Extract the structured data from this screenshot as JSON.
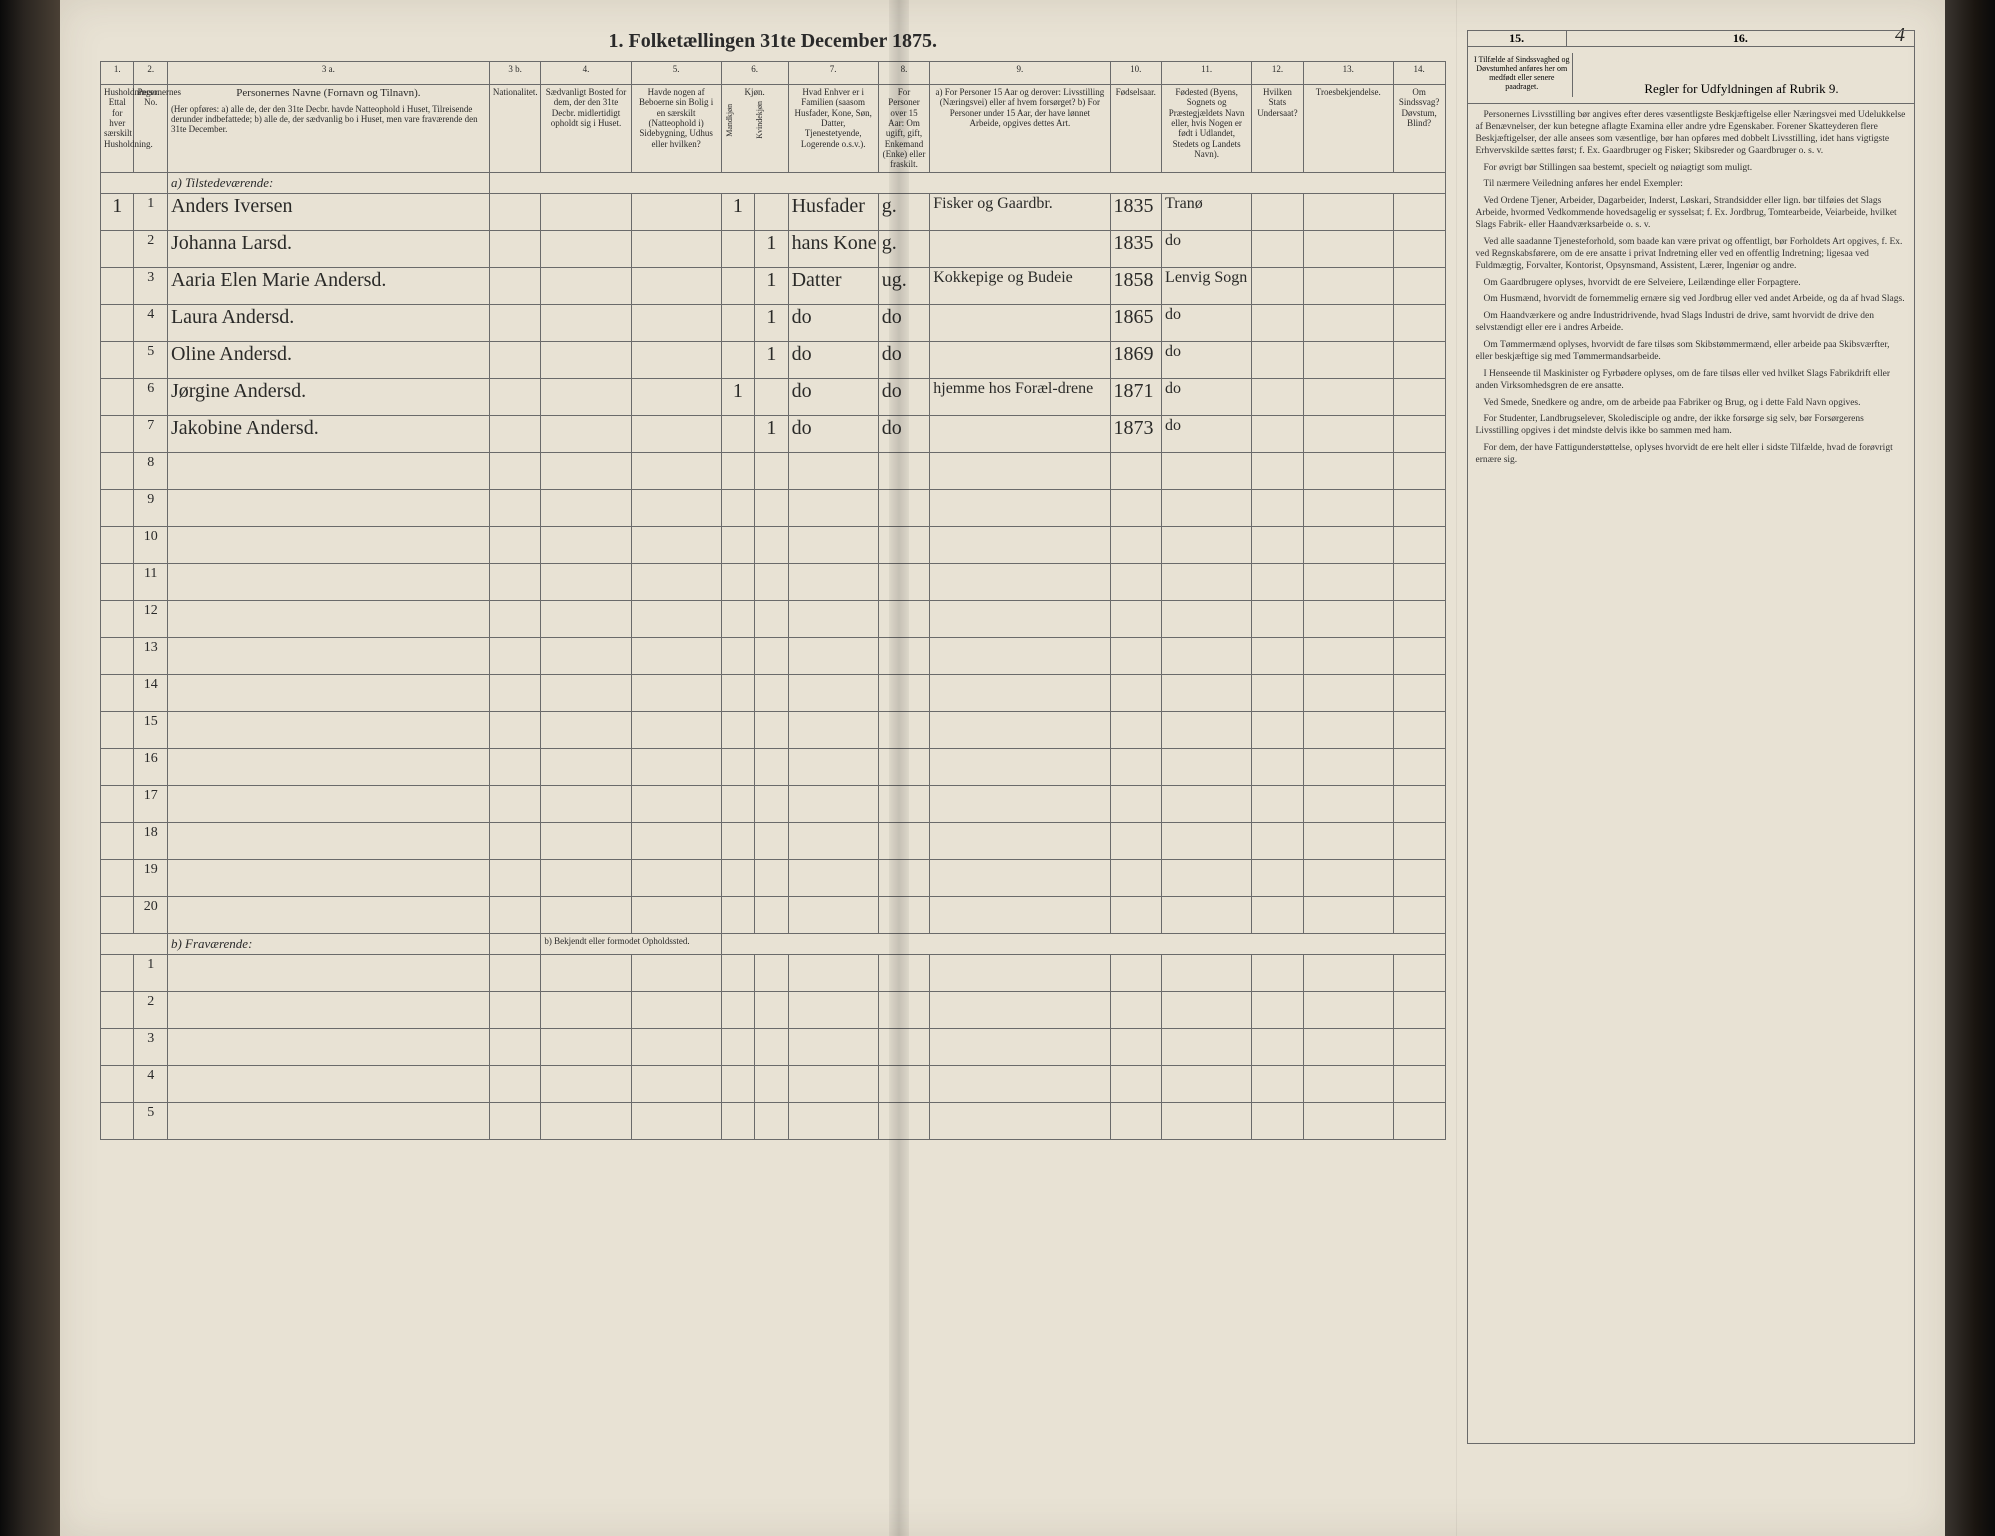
{
  "pageNumber": "4",
  "title": "1. Folketællingen 31te December 1875.",
  "columns": {
    "nums": [
      "1.",
      "2.",
      "3 a.",
      "3 b.",
      "4.",
      "5.",
      "6.",
      "7.",
      "8.",
      "9.",
      "10.",
      "11.",
      "12.",
      "13.",
      "14."
    ],
    "h1": "Husholdninger. Ettal for hver særskilt Husholdning.",
    "h2": "Personernes No.",
    "h3a_title": "Personernes Navne (Fornavn og Tilnavn).",
    "h3a_sub": "(Her opføres: a) alle de, der den 31te Decbr. havde Natteophold i Huset, Tilreisende derunder indbefattede; b) alle de, der sædvanlig bo i Huset, men vare fraværende den 31te December.",
    "h3b": "Nationalitet.",
    "h4": "Sædvanligt Bosted for dem, der den 31te Decbr. midlertidigt opholdt sig i Huset.",
    "h5": "Havde nogen af Beboerne sin Bolig i en særskilt (Natteophold i) Sidebygning, Udhus eller hvilken?",
    "h6": "Kjøn.",
    "h6a": "Mandkjøn",
    "h6b": "Kvindekjøn",
    "h7": "Hvad Enhver er i Familien (saasom Husfader, Kone, Søn, Datter, Tjenestetyende, Logerende o.s.v.).",
    "h8": "For Personer over 15 Aar: Om ugift, gift, Enkemand (Enke) eller fraskilt.",
    "h9": "a) For Personer 15 Aar og derover: Livsstilling (Næringsvei) eller af hvem forsørget? b) For Personer under 15 Aar, der have lønnet Arbeide, opgives dettes Art.",
    "h10": "Fødselsaar.",
    "h11": "Fødested (Byens, Sognets og Præstegjældets Navn eller, hvis Nogen er født i Udlandet, Stedets og Landets Navn).",
    "h12": "Hvilken Stats Undersaat?",
    "h13": "Troesbekjendelse.",
    "h14": "Om Sindssvag? Døvstum, Blind?"
  },
  "sectionA": "a) Tilstedeværende:",
  "sectionB": "b) Fraværende:",
  "sectionB_note": "b) Bekjendt eller formodet Opholdssted.",
  "rows": [
    {
      "hh": "1",
      "no": "1",
      "name": "Anders Iversen",
      "nat": "",
      "m": "1",
      "f": "",
      "rel": "Husfader",
      "civ": "g.",
      "occ": "Fisker og Gaardbr.",
      "year": "1835",
      "place": "Tranø"
    },
    {
      "hh": "",
      "no": "2",
      "name": "Johanna Larsd.",
      "nat": "",
      "m": "",
      "f": "1",
      "rel": "hans Kone",
      "civ": "g.",
      "occ": "",
      "year": "1835",
      "place": "do"
    },
    {
      "hh": "",
      "no": "3",
      "name": "Aaria Elen Marie Andersd.",
      "nat": "",
      "m": "",
      "f": "1",
      "rel": "Datter",
      "civ": "ug.",
      "occ": "Kokkepige og Budeie",
      "year": "1858",
      "place": "Lenvig Sogn"
    },
    {
      "hh": "",
      "no": "4",
      "name": "Laura Andersd.",
      "nat": "",
      "m": "",
      "f": "1",
      "rel": "do",
      "civ": "do",
      "occ": "",
      "year": "1865",
      "place": "do"
    },
    {
      "hh": "",
      "no": "5",
      "name": "Oline Andersd.",
      "nat": "",
      "m": "",
      "f": "1",
      "rel": "do",
      "civ": "do",
      "occ": "",
      "year": "1869",
      "place": "do"
    },
    {
      "hh": "",
      "no": "6",
      "name": "Jørgine Andersd.",
      "nat": "",
      "m": "1",
      "f": "",
      "rel": "do",
      "civ": "do",
      "occ": "hjemme hos Foræl-drene",
      "year": "1871",
      "place": "do"
    },
    {
      "hh": "",
      "no": "7",
      "name": "Jakobine Andersd.",
      "nat": "",
      "m": "",
      "f": "1",
      "rel": "do",
      "civ": "do",
      "occ": "",
      "year": "1873",
      "place": "do"
    }
  ],
  "emptyRowsA": [
    "8",
    "9",
    "10",
    "11",
    "12",
    "13",
    "14",
    "15",
    "16",
    "17",
    "18",
    "19",
    "20"
  ],
  "emptyRowsB": [
    "1",
    "2",
    "3",
    "4",
    "5"
  ],
  "rulesColNums": {
    "c15": "15.",
    "c16": "16."
  },
  "rulesHead15": "I Tilfælde af Sindssvaghed og Døvstumhed anføres her om medfødt eller senere paadraget.",
  "rulesHead16": "Regler for Udfyldningen af Rubrik 9.",
  "rules": [
    "Personernes Livsstilling bør angives efter deres væsentligste Beskjæftigelse eller Næringsvei med Udelukkelse af Benævnelser, der kun betegne aflagte Examina eller andre ydre Egenskaber. Forener Skatteyderen flere Beskjæftigelser, der alle ansees som væsentlige, bør han opføres med dobbelt Livsstilling, idet hans vigtigste Erhvervskilde sættes først; f. Ex. Gaardbruger og Fisker; Skibsreder og Gaardbruger o. s. v.",
    "For øvrigt bør Stillingen saa bestemt, specielt og nøiagtigt som muligt.",
    "Til nærmere Veiledning anføres her endel Exempler:",
    "Ved Ordene Tjener, Arbeider, Dagarbeider, Inderst, Løskari, Strandsidder eller lign. bør tilføies det Slags Arbeide, hvormed Vedkommende hovedsagelig er sysselsat; f. Ex. Jordbrug, Tomtearbeide, Veiarbeide, hvilket Slags Fabrik- eller Haandværksarbeide o. s. v.",
    "Ved alle saadanne Tjenesteforhold, som baade kan være privat og offentligt, bør Forholdets Art opgives, f. Ex. ved Regnskabsførere, om de ere ansatte i privat Indretning eller ved en offentlig Indretning; ligesaa ved Fuldmægtig, Forvalter, Kontorist, Opsynsmand, Assistent, Lærer, Ingeniør og andre.",
    "Om Gaardbrugere oplyses, hvorvidt de ere Selveiere, Leilændinge eller Forpagtere.",
    "Om Husmænd, hvorvidt de fornemmelig ernære sig ved Jordbrug eller ved andet Arbeide, og da af hvad Slags.",
    "Om Haandværkere og andre Industridrivende, hvad Slags Industri de drive, samt hvorvidt de drive den selvstændigt eller ere i andres Arbeide.",
    "Om Tømmermænd oplyses, hvorvidt de fare tilsøs som Skibstømmermænd, eller arbeide paa Skibsværfter, eller beskjæftige sig med Tømmermandsarbeide.",
    "I Henseende til Maskinister og Fyrbødere oplyses, om de fare tilsøs eller ved hvilket Slags Fabrikdrift eller anden Virksomhedsgren de ere ansatte.",
    "Ved Smede, Snedkere og andre, om de arbeide paa Fabriker og Brug, og i dette Fald Navn opgives.",
    "For Studenter, Landbrugselever, Skoledisciple og andre, der ikke forsørge sig selv, bør Forsørgerens Livsstilling opgives i det mindste delvis ikke bo sammen med ham.",
    "For dem, der have Fattigunderstøttelse, oplyses hvorvidt de ere helt eller i sidste Tilfælde, hvad de forøvrigt ernære sig."
  ]
}
